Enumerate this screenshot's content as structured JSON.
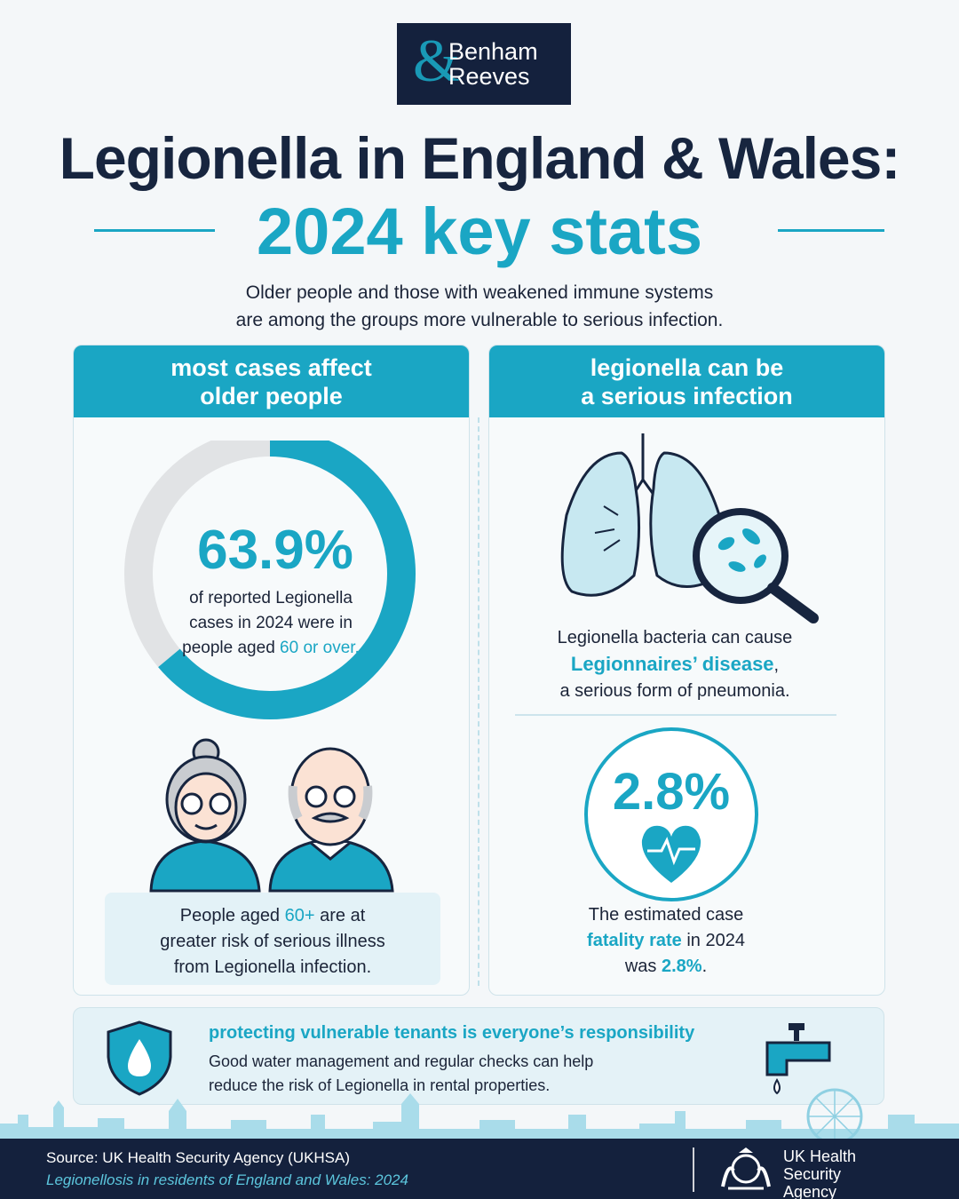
{
  "logo": {
    "amp": "&",
    "line1": "Benham",
    "line2": "Reeves"
  },
  "title": {
    "line1": "Legionella in England & Wales:",
    "line2": "2024 key stats"
  },
  "intro": {
    "line1": "Older people and those with weakened immune systems",
    "line2": "are among the groups more vulnerable to serious infection."
  },
  "left_panel": {
    "head_line1": "most cases affect",
    "head_line2": "older people",
    "percent": "63.9%",
    "percent_value": 63.9,
    "desc_line1": "of reported Legionella",
    "desc_line2": "cases in 2024 were in",
    "desc_line3_pre": "people aged ",
    "desc_line3_teal": "60 or over.",
    "risk_line1_pre": "People aged ",
    "risk_line1_teal": "60+",
    "risk_line1_post": " are at",
    "risk_line2": "greater risk of serious illness",
    "risk_line3": "from Legionella infection."
  },
  "right_panel": {
    "head_line1": "legionella can be",
    "head_line2": "a serious infection",
    "lung_line1": "Legionella bacteria can cause",
    "lung_line2": "Legionnaires’ disease",
    "lung_line2_post": ",",
    "lung_line3": "a serious form of pneumonia.",
    "fatal_percent": "2.8%",
    "fatal_line1": "The estimated case",
    "fatal_line2_teal": "fatality rate",
    "fatal_line2_post": " in 2024",
    "fatal_line3_pre": "was ",
    "fatal_line3_teal": "2.8%",
    "fatal_line3_post": "."
  },
  "banner": {
    "heading": "protecting vulnerable tenants is everyone’s responsibility",
    "line1": "Good water management and regular checks can help",
    "line2": "reduce the risk of Legionella in rental properties."
  },
  "footer": {
    "source": "Source: UK Health Security Agency (UKHSA)",
    "report": "Legionellosis in residents of England and Wales: 2024",
    "agency_line1": "UK Health",
    "agency_line2": "Security",
    "agency_line3": "Agency"
  },
  "colors": {
    "navy": "#14213d",
    "teal": "#1aa6c4",
    "grey": "#e1e3e5",
    "background": "#f4f7f9"
  },
  "icons": [
    "donut-chart",
    "elderly-woman-icon",
    "elderly-man-icon",
    "lungs-icon",
    "magnifier-icon",
    "heartbeat-icon",
    "shield-drop-icon",
    "tap-icon",
    "crest-icon"
  ]
}
